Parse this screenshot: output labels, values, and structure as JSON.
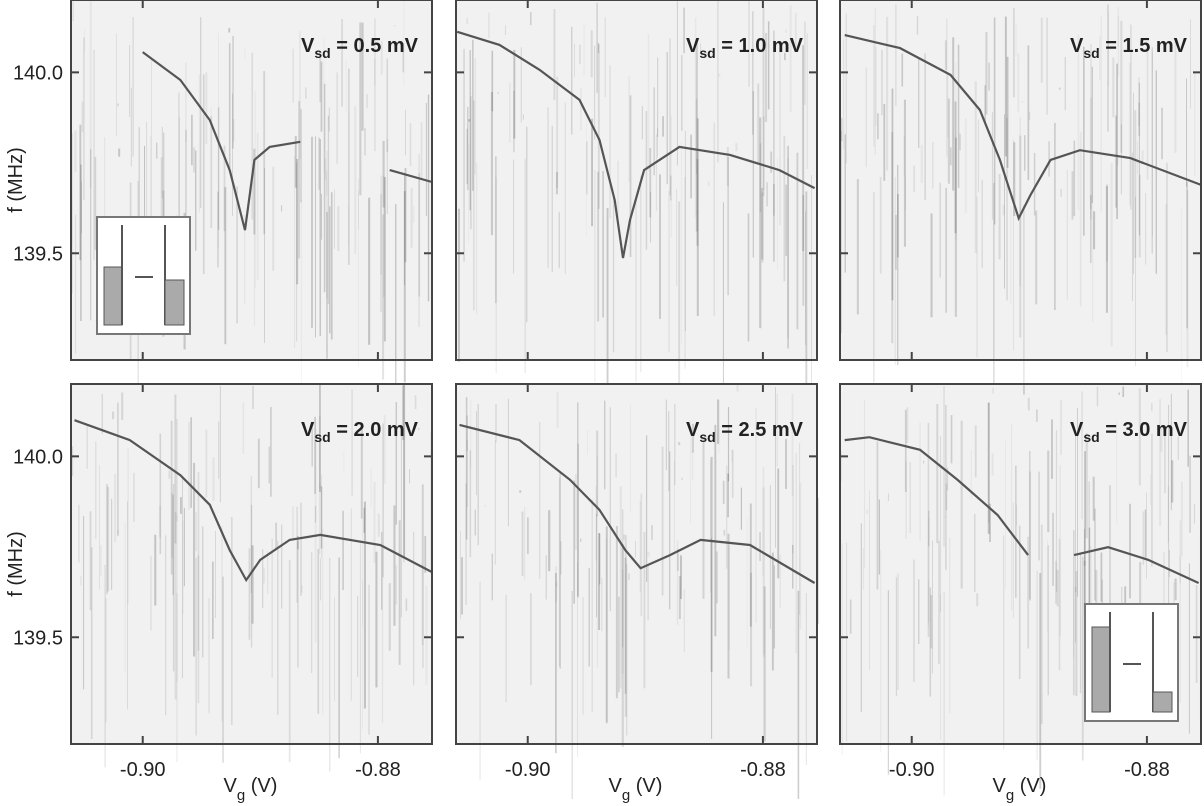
{
  "chart_data": [
    {
      "type": "line",
      "annotation": {
        "symbol": "V",
        "subscript": "sd",
        "text": " = 0.5 mV"
      },
      "x": [
        -0.9,
        -0.8968,
        -0.8943,
        -0.8926,
        -0.8913,
        -0.8905,
        -0.8892,
        -0.8866,
        null,
        -0.879,
        -0.8754
      ],
      "values": [
        140.056,
        139.979,
        139.868,
        139.73,
        139.564,
        139.758,
        139.794,
        139.808,
        null,
        139.73,
        139.697
      ],
      "color": "#555555",
      "xlim": [
        -0.9061,
        -0.8754
      ],
      "ylim": [
        139.205,
        140.2
      ],
      "yticks": [
        {
          "value": 140.0,
          "label": "140.0"
        },
        {
          "value": 139.5,
          "label": "139.5"
        }
      ],
      "ylabel": "f (MHz)"
    },
    {
      "type": "line",
      "annotation": {
        "symbol": "V",
        "subscript": "sd",
        "text": " = 1.0 mV"
      },
      "x": [
        -0.906,
        -0.9024,
        -0.899,
        -0.8956,
        -0.8939,
        -0.8926,
        -0.8919,
        -0.8913,
        -0.8901,
        -0.8871,
        -0.8828,
        -0.8786,
        -0.8756
      ],
      "values": [
        140.112,
        140.076,
        140.007,
        139.924,
        139.813,
        139.647,
        139.487,
        139.592,
        139.73,
        139.794,
        139.772,
        139.73,
        139.68
      ],
      "color": "#555555",
      "xlim": [
        -0.9061,
        -0.8754
      ],
      "ylim": [
        139.205,
        140.2
      ]
    },
    {
      "type": "line",
      "annotation": {
        "symbol": "V",
        "subscript": "sd",
        "text": " = 1.5 mV"
      },
      "x": [
        -0.9057,
        -0.901,
        -0.8967,
        -0.8942,
        -0.8925,
        -0.8909,
        -0.8899,
        -0.8882,
        -0.8857,
        -0.8814,
        -0.8754
      ],
      "values": [
        140.103,
        140.067,
        139.993,
        139.896,
        139.758,
        139.597,
        139.661,
        139.758,
        139.785,
        139.763,
        139.689
      ],
      "color": "#555555",
      "xlim": [
        -0.9061,
        -0.8754
      ],
      "ylim": [
        139.205,
        140.2
      ]
    },
    {
      "type": "line",
      "annotation": {
        "symbol": "V",
        "subscript": "sd",
        "text": " = 2.0 mV"
      },
      "x": [
        -0.9058,
        -0.9011,
        -0.8968,
        -0.8943,
        -0.8926,
        -0.8912,
        -0.89,
        -0.8875,
        -0.8849,
        -0.8798,
        -0.8754
      ],
      "values": [
        140.1,
        140.045,
        139.948,
        139.866,
        139.741,
        139.658,
        139.714,
        139.769,
        139.783,
        139.755,
        139.68
      ],
      "color": "#555555",
      "xlim": [
        -0.9061,
        -0.8754
      ],
      "ylim": [
        139.205,
        140.2
      ],
      "xticks": [
        {
          "value": -0.9,
          "label": "-0.90"
        },
        {
          "value": -0.88,
          "label": "-0.88"
        }
      ],
      "yticks": [
        {
          "value": 140.0,
          "label": "140.0"
        },
        {
          "value": 139.5,
          "label": "139.5"
        }
      ],
      "xlabel": {
        "symbol": "V",
        "subscript": "g",
        "unit": " (V)"
      },
      "ylabel": "f (MHz)"
    },
    {
      "type": "line",
      "annotation": {
        "symbol": "V",
        "subscript": "sd",
        "text": " = 2.5 mV"
      },
      "x": [
        -0.9058,
        -0.9007,
        -0.8964,
        -0.8939,
        -0.8917,
        -0.8904,
        -0.8879,
        -0.8853,
        -0.8811,
        -0.8756
      ],
      "values": [
        140.087,
        140.045,
        139.935,
        139.852,
        139.741,
        139.691,
        139.727,
        139.769,
        139.755,
        139.65
      ],
      "color": "#555555",
      "xlim": [
        -0.9061,
        -0.8754
      ],
      "ylim": [
        139.205,
        140.2
      ],
      "xticks": [
        {
          "value": -0.9,
          "label": "-0.90"
        },
        {
          "value": -0.88,
          "label": "-0.88"
        }
      ],
      "xlabel": {
        "symbol": "V",
        "subscript": "g",
        "unit": " (V)"
      }
    },
    {
      "type": "line",
      "annotation": {
        "symbol": "V",
        "subscript": "sd",
        "text": " = 3.0 mV"
      },
      "x": [
        -0.9057,
        -0.9036,
        -0.8993,
        -0.8961,
        -0.8927,
        -0.8901,
        null,
        -0.8862,
        -0.8833,
        -0.8799,
        -0.8756
      ],
      "values": [
        140.045,
        140.053,
        140.018,
        139.935,
        139.838,
        139.727,
        null,
        139.727,
        139.749,
        139.714,
        139.65
      ],
      "color": "#555555",
      "xlim": [
        -0.9061,
        -0.8754
      ],
      "ylim": [
        139.205,
        140.2
      ],
      "xticks": [
        {
          "value": -0.9,
          "label": "-0.90"
        },
        {
          "value": -0.88,
          "label": "-0.88"
        }
      ],
      "xlabel": {
        "symbol": "V",
        "subscript": "g",
        "unit": " (V)"
      }
    }
  ]
}
